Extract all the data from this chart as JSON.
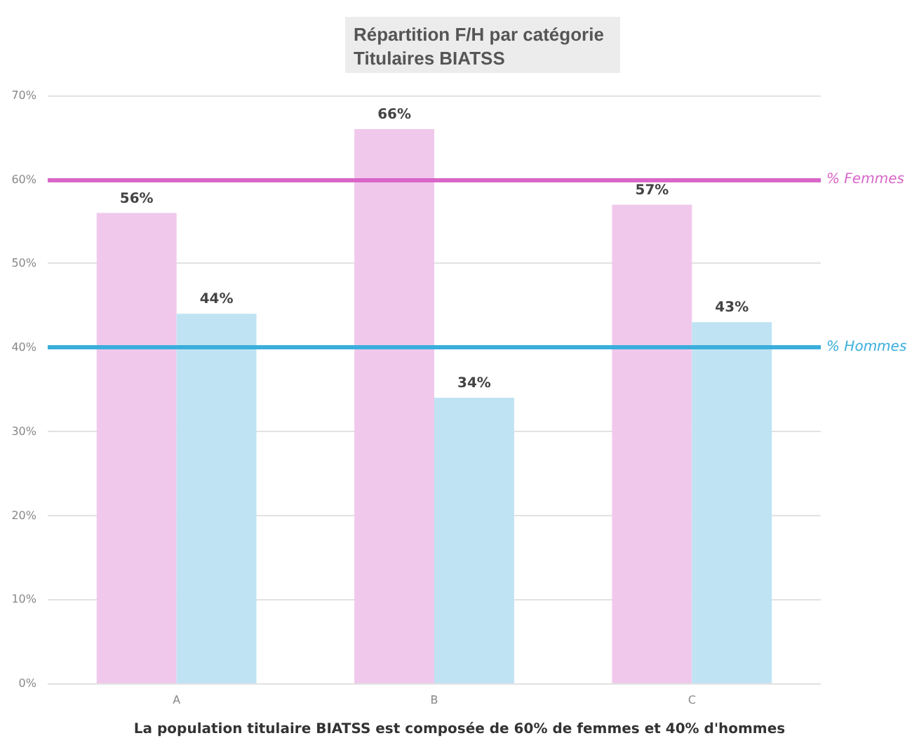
{
  "chart_data": {
    "type": "bar",
    "title": "Répartition F/H par catégorie\nTitulaires BIATSS",
    "categories": [
      "A",
      "B",
      "C"
    ],
    "series": [
      {
        "color": "#f0c8ec",
        "values": [
          56,
          66,
          57
        ]
      },
      {
        "color": "#bfe3f3",
        "values": [
          44,
          34,
          43
        ]
      }
    ],
    "value_labels": [
      [
        "56%",
        "66%",
        "57%"
      ],
      [
        "44%",
        "34%",
        "43%"
      ]
    ],
    "ylim": [
      0,
      70
    ],
    "yticks": [
      {
        "value": 0,
        "label": "0%"
      },
      {
        "value": 10,
        "label": "10%"
      },
      {
        "value": 20,
        "label": "20%"
      },
      {
        "value": 30,
        "label": "30%"
      },
      {
        "value": 40,
        "label": "40%"
      },
      {
        "value": 50,
        "label": "50%"
      },
      {
        "value": 60,
        "label": "60%"
      },
      {
        "value": 70,
        "label": "70%"
      }
    ],
    "grid": "y",
    "ref_lines": [
      {
        "axis": "y",
        "value": 60,
        "label": "% Femmes",
        "color": "#d966c8"
      },
      {
        "axis": "y",
        "value": 40,
        "label": "% Hommes",
        "color": "#3aaedc"
      }
    ],
    "annotations": [
      "La population titulaire BIATSS est composée de 60% de femmes et 40% d'hommes"
    ]
  }
}
